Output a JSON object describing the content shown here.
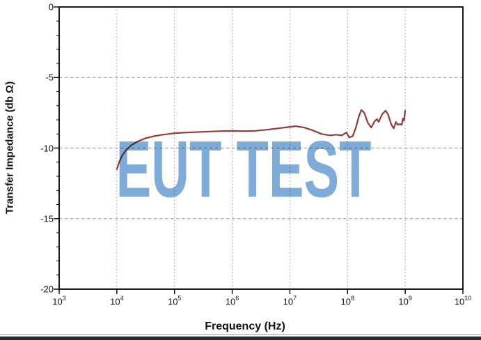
{
  "watermark": {
    "text": "EUT TEST"
  },
  "colors": {
    "curve": "#943a35",
    "watermark": "#7fabd8",
    "grid": "#8f8f8f",
    "axis": "#000000",
    "footer_line": "#aaaaaa",
    "footer_bar": "#242a35"
  },
  "chart_data": {
    "type": "line",
    "title": "",
    "xlabel": "Frequency (Hz)",
    "ylabel": "Transfer Impedance (db Ω)",
    "x_scale": "log10",
    "x_tick_base": "10",
    "x_tick_exponents": [
      3,
      4,
      5,
      6,
      7,
      8,
      9,
      10
    ],
    "xlim_exponents": [
      3,
      10
    ],
    "y_ticks": [
      0,
      -5,
      -10,
      -15,
      -20
    ],
    "ylim": [
      -20,
      0
    ],
    "y_minor_tick_step": 1,
    "grid": {
      "vertical_at_exponents": [
        4,
        5,
        6,
        7,
        8,
        9
      ],
      "horizontal_at": [
        -5,
        -10,
        -15
      ]
    },
    "legend": "none",
    "series": [
      {
        "name": "transfer impedance",
        "points_log10hz_db": [
          [
            4.0,
            -11.5
          ],
          [
            4.04,
            -11.0
          ],
          [
            4.09,
            -10.55
          ],
          [
            4.16,
            -10.15
          ],
          [
            4.25,
            -9.8
          ],
          [
            4.35,
            -9.55
          ],
          [
            4.5,
            -9.3
          ],
          [
            4.65,
            -9.15
          ],
          [
            4.8,
            -9.05
          ],
          [
            5.0,
            -8.95
          ],
          [
            5.2,
            -8.9
          ],
          [
            5.5,
            -8.85
          ],
          [
            5.8,
            -8.8
          ],
          [
            6.0,
            -8.78
          ],
          [
            6.2,
            -8.8
          ],
          [
            6.4,
            -8.78
          ],
          [
            6.6,
            -8.7
          ],
          [
            6.8,
            -8.6
          ],
          [
            7.0,
            -8.5
          ],
          [
            7.1,
            -8.45
          ],
          [
            7.25,
            -8.55
          ],
          [
            7.4,
            -8.75
          ],
          [
            7.55,
            -9.0
          ],
          [
            7.7,
            -9.1
          ],
          [
            7.8,
            -9.05
          ],
          [
            7.9,
            -9.1
          ],
          [
            7.98,
            -8.9
          ],
          [
            8.03,
            -9.25
          ],
          [
            8.09,
            -9.15
          ],
          [
            8.14,
            -8.6
          ],
          [
            8.2,
            -7.7
          ],
          [
            8.24,
            -7.3
          ],
          [
            8.29,
            -7.5
          ],
          [
            8.35,
            -8.2
          ],
          [
            8.41,
            -8.55
          ],
          [
            8.47,
            -8.1
          ],
          [
            8.51,
            -7.95
          ],
          [
            8.54,
            -8.15
          ],
          [
            8.6,
            -7.6
          ],
          [
            8.66,
            -7.35
          ],
          [
            8.7,
            -7.6
          ],
          [
            8.76,
            -8.35
          ],
          [
            8.8,
            -8.6
          ],
          [
            8.84,
            -8.15
          ],
          [
            8.87,
            -8.35
          ],
          [
            8.9,
            -8.3
          ],
          [
            8.94,
            -8.35
          ],
          [
            8.96,
            -7.9
          ],
          [
            8.98,
            -8.05
          ],
          [
            9.0,
            -7.35
          ]
        ]
      }
    ]
  }
}
